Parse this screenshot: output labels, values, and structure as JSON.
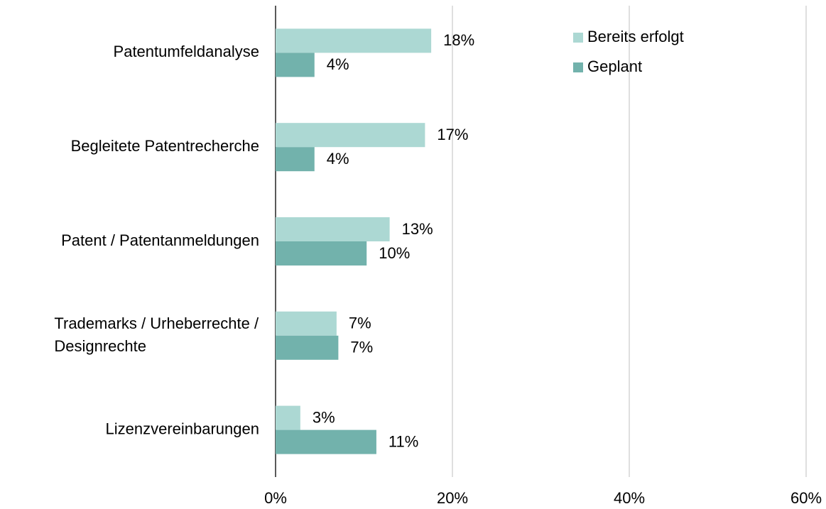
{
  "chart_data": {
    "type": "hbar",
    "categories": [
      "Patentumfeldanalyse",
      "Begleitete Patentrecherche",
      "Patent / Patentanmeldungen",
      "Trademarks / Urheberrechte /\nDesignrechte",
      "Lizenzvereinbarungen"
    ],
    "series": [
      {
        "name": "Bereits erfolgt",
        "color": "#acd8d3",
        "values": [
          17.6,
          16.9,
          12.9,
          6.9,
          2.8
        ],
        "value_labels": [
          "18%",
          "17%",
          "13%",
          "7%",
          "3%"
        ]
      },
      {
        "name": "Geplant",
        "color": "#72b2ac",
        "values": [
          4.4,
          4.4,
          10.3,
          7.1,
          11.4
        ],
        "value_labels": [
          "4%",
          "4%",
          "10%",
          "7%",
          "11%"
        ]
      }
    ],
    "xlim": [
      0,
      60
    ],
    "xticks": [
      {
        "value": 0,
        "label": "0%"
      },
      {
        "value": 20,
        "label": "20%"
      },
      {
        "value": 40,
        "label": "40%"
      },
      {
        "value": 60,
        "label": "60%"
      }
    ],
    "grid": true,
    "legend": "top-right"
  }
}
